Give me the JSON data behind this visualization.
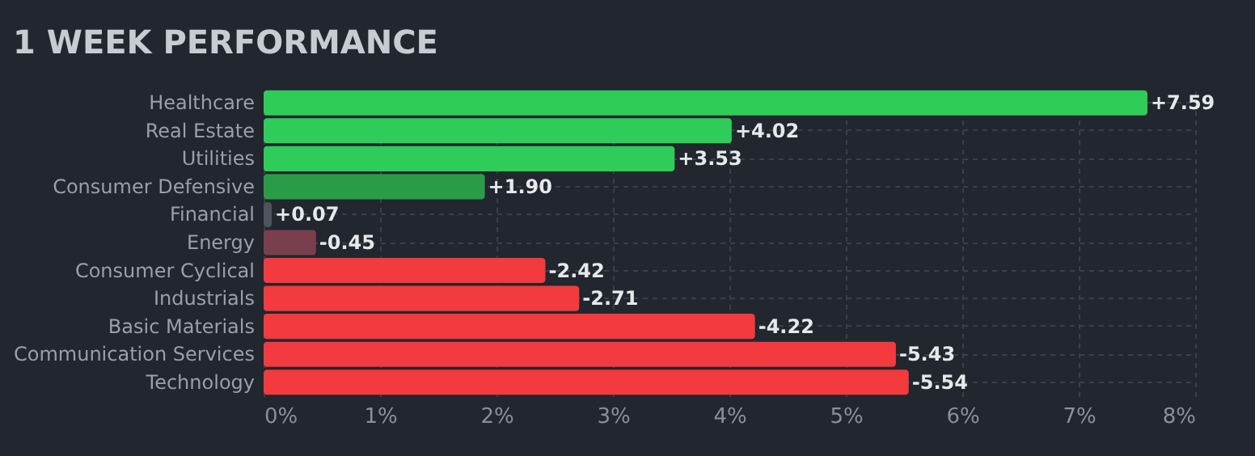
{
  "chart_data": {
    "type": "bar",
    "orientation": "horizontal",
    "title": "1 WEEK PERFORMANCE",
    "categories": [
      "Healthcare",
      "Real Estate",
      "Utilities",
      "Consumer Defensive",
      "Financial",
      "Energy",
      "Consumer Cyclical",
      "Industrials",
      "Basic Materials",
      "Communication Services",
      "Technology"
    ],
    "values": [
      7.59,
      4.02,
      3.53,
      1.9,
      0.07,
      -0.45,
      -2.42,
      -2.71,
      -4.22,
      -5.43,
      -5.54
    ],
    "base": [
      0,
      0,
      0,
      0,
      0,
      0.45,
      2.42,
      2.71,
      4.22,
      5.43,
      5.54
    ],
    "value_labels": [
      "+7.59",
      "+4.02",
      "+3.53",
      "+1.90",
      "+0.07",
      "-0.45",
      "-2.42",
      "-2.71",
      "-4.22",
      "-5.43",
      "-5.54"
    ],
    "colors": [
      "#30cc5a",
      "#30cc5a",
      "#30cc5a",
      "#2a9c48",
      "#4f535c",
      "#7a3f4c",
      "#f23a3f",
      "#f23a3f",
      "#f23a3f",
      "#f23a3f",
      "#f23a3f"
    ],
    "xlim": [
      0,
      8
    ],
    "xticks": [
      {
        "value": 0,
        "label": "0%"
      },
      {
        "value": 1,
        "label": "1%"
      },
      {
        "value": 2,
        "label": "2%"
      },
      {
        "value": 3,
        "label": "3%"
      },
      {
        "value": 4,
        "label": "4%"
      },
      {
        "value": 5,
        "label": "5%"
      },
      {
        "value": 6,
        "label": "6%"
      },
      {
        "value": 7,
        "label": "7%"
      },
      {
        "value": 8,
        "label": "8%"
      }
    ],
    "grid": true
  }
}
